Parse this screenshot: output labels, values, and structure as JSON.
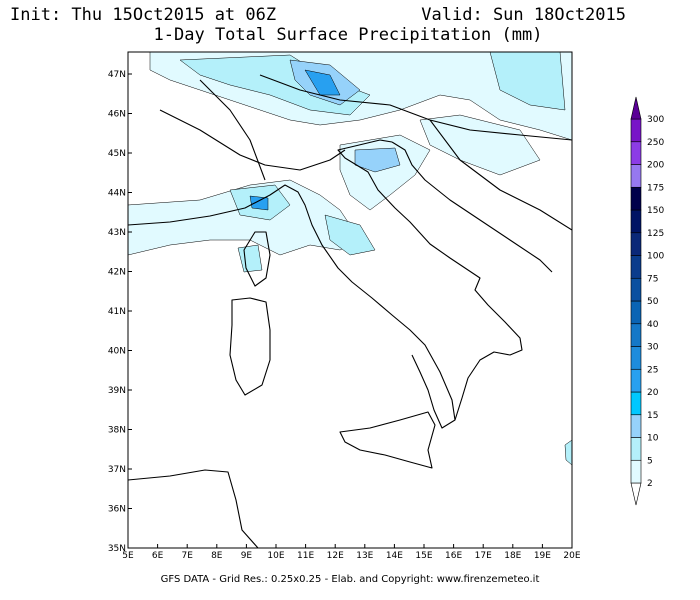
{
  "map": {
    "title_left": "Init: Thu 15Oct2015 at 06Z",
    "title_right": "Valid: Sun 18Oct2015",
    "subtitle": "1-Day Total Surface Precipitation (mm)",
    "lon_ticks": [
      "5E",
      "6E",
      "7E",
      "8E",
      "9E",
      "10E",
      "11E",
      "12E",
      "13E",
      "14E",
      "15E",
      "16E",
      "17E",
      "18E",
      "19E",
      "20E"
    ],
    "lat_ticks": [
      "35N",
      "36N",
      "37N",
      "38N",
      "39N",
      "40N",
      "41N",
      "42N",
      "43N",
      "44N",
      "45N",
      "46N",
      "47N"
    ],
    "legend": {
      "levels": [
        2,
        5,
        10,
        15,
        20,
        25,
        30,
        40,
        50,
        75,
        100,
        125,
        150,
        175,
        200,
        250,
        300
      ],
      "colors": [
        "#ffffff",
        "#e1faff",
        "#b4f0fa",
        "#96d2fa",
        "#00c8ff",
        "#28a0f0",
        "#1e8cdc",
        "#1478c8",
        "#0a64b4",
        "#0a50a0",
        "#0a3c8c",
        "#0a2878",
        "#001464",
        "#00004b",
        "#9678f0",
        "#8c3ce6",
        "#7814c8",
        "#5a0096"
      ]
    },
    "footer": "GFS DATA - Grid Res.: 0.25x0.25 - Elab. and Copyright: www.firenzemeteo.it"
  }
}
